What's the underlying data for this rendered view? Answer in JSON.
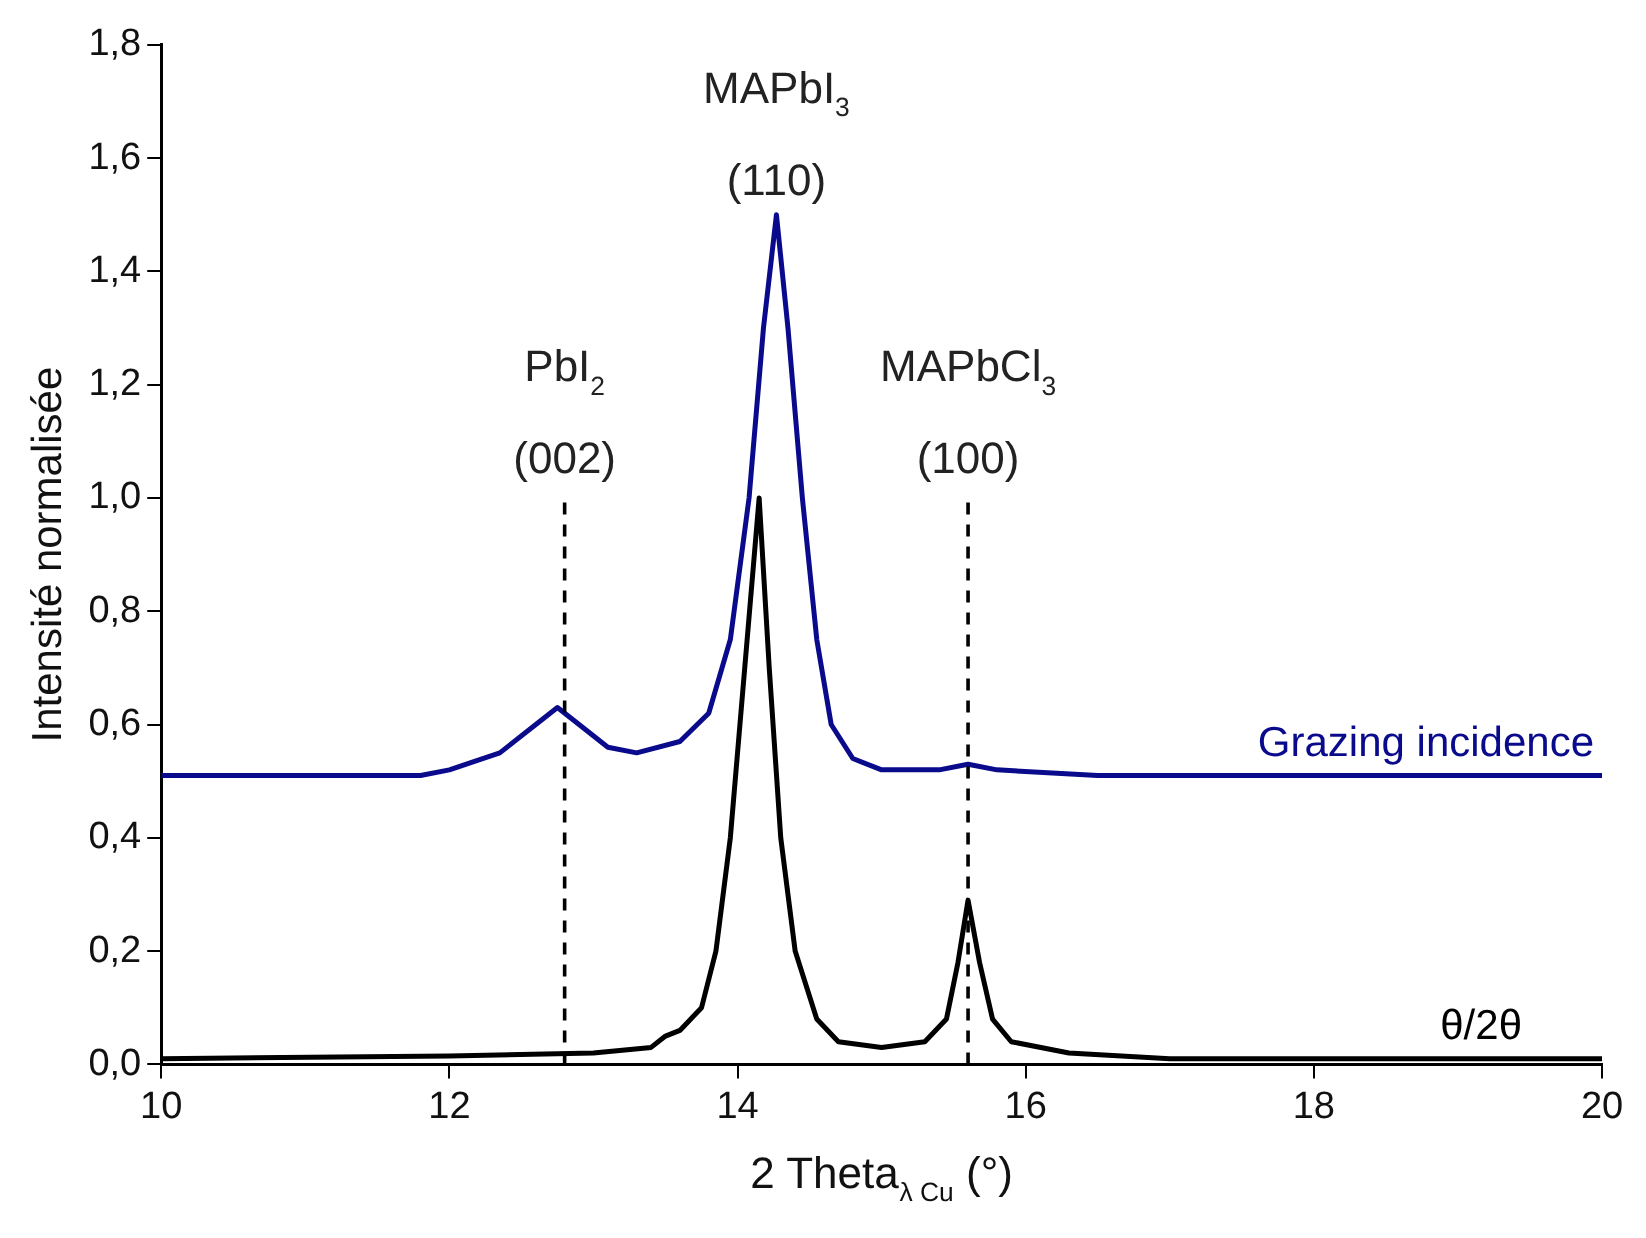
{
  "chart_data": {
    "type": "line",
    "xlabel": "2 Theta$_{λ Cu}$ (°)",
    "ylabel": "Intensité normalisée",
    "xlim": [
      10,
      20
    ],
    "xticks": [
      10,
      12,
      14,
      16,
      18,
      20
    ],
    "ylim": [
      0,
      1.8
    ],
    "yticks": [
      {
        "value": 0,
        "label": "0,0"
      },
      {
        "value": 0.2,
        "label": "0,2"
      },
      {
        "value": 0.4,
        "label": "0,4"
      },
      {
        "value": 0.6,
        "label": "0,6"
      },
      {
        "value": 0.8,
        "label": "0,8"
      },
      {
        "value": 1,
        "label": "1,0"
      },
      {
        "value": 1.2,
        "label": "1,2"
      },
      {
        "value": 1.4,
        "label": "1,4"
      },
      {
        "value": 1.6,
        "label": "1,6"
      },
      {
        "value": 1.8,
        "label": "1,8"
      }
    ],
    "legend": false,
    "marker": "none",
    "line_style": "solid",
    "series": [
      {
        "name": "Grazing incidence",
        "color": "#0a0a8c",
        "x": [
          10,
          11,
          11.8,
          12,
          12.35,
          12.6,
          12.75,
          12.9,
          13.1,
          13.3,
          13.6,
          13.8,
          13.95,
          14.08,
          14.18,
          14.27,
          14.35,
          14.45,
          14.55,
          14.65,
          14.8,
          15,
          15.4,
          15.6,
          15.8,
          16.5,
          18,
          20
        ],
        "values": [
          0.51,
          0.51,
          0.51,
          0.52,
          0.55,
          0.6,
          0.63,
          0.6,
          0.56,
          0.55,
          0.57,
          0.62,
          0.75,
          1.0,
          1.3,
          1.5,
          1.3,
          1.0,
          0.75,
          0.6,
          0.54,
          0.52,
          0.52,
          0.53,
          0.52,
          0.51,
          0.51,
          0.51
        ]
      },
      {
        "name": "θ/2θ",
        "color": "#000000",
        "x": [
          10,
          12,
          13,
          13.4,
          13.5,
          13.6,
          13.75,
          13.85,
          13.95,
          14.05,
          14.15,
          14.22,
          14.3,
          14.4,
          14.55,
          14.7,
          15,
          15.3,
          15.45,
          15.53,
          15.6,
          15.68,
          15.77,
          15.9,
          16.3,
          17,
          20
        ],
        "values": [
          0.01,
          0.015,
          0.02,
          0.03,
          0.05,
          0.06,
          0.1,
          0.2,
          0.4,
          0.7,
          1.0,
          0.7,
          0.4,
          0.2,
          0.08,
          0.04,
          0.03,
          0.04,
          0.08,
          0.18,
          0.29,
          0.18,
          0.08,
          0.04,
          0.02,
          0.01,
          0.01
        ]
      }
    ],
    "ref_lines": [
      {
        "axis": "x",
        "value": 12.8,
        "color": "#000000",
        "line_style": "dashed",
        "label": "PbI$_{2}$\n(002)"
      },
      {
        "axis": "x",
        "value": 15.6,
        "color": "#000000",
        "line_style": "dashed",
        "label": "MAPbCl$_{3}$\n(100)"
      }
    ],
    "annotations": [
      {
        "text": "MAPbI$_{3}$",
        "x": 14.27,
        "y": 1.5
      },
      {
        "text": "(110)",
        "x": 14.27,
        "y": 1.5
      }
    ]
  }
}
